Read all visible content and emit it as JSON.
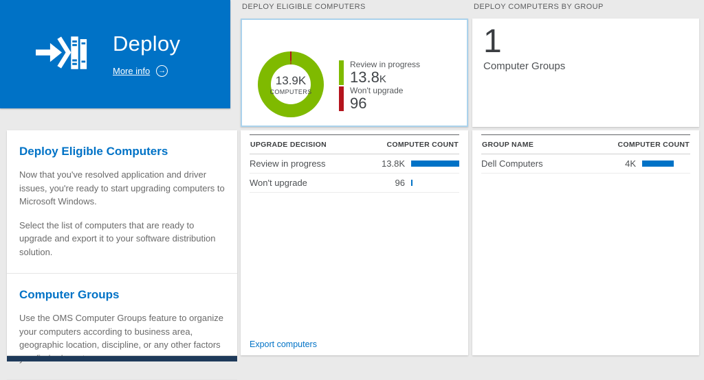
{
  "colors": {
    "accent": "#0072c6",
    "navy": "#1e3a5a",
    "bar": "#0072c6"
  },
  "left_tile": {
    "title": "Deploy",
    "more_info_label": "More info"
  },
  "left_panel": {
    "sections": [
      {
        "heading": "Deploy Eligible Computers",
        "paragraphs": [
          "Now that you've resolved application and driver issues, you're ready to start upgrading computers to Microsoft Windows.",
          "Select the list of computers that are ready to upgrade and export it to your software distribution solution."
        ]
      },
      {
        "heading": "Computer Groups",
        "paragraphs": [
          "Use the OMS Computer Groups feature to organize your computers according to business area, geographic location, discipline, or any other factors you find relevant."
        ]
      }
    ]
  },
  "middle": {
    "section_title": "DEPLOY ELIGIBLE COMPUTERS",
    "donut": {
      "center_value": "13.9K",
      "center_label": "COMPUTERS",
      "legend": [
        {
          "label": "Review in progress",
          "display": "13.8",
          "suffix": "K",
          "value": 13800,
          "color": "#7fba00"
        },
        {
          "label": "Won't upgrade",
          "display": "96",
          "suffix": "",
          "value": 96,
          "color": "#b4141d"
        }
      ]
    },
    "table": {
      "columns": [
        "UPGRADE DECISION",
        "COMPUTER COUNT"
      ],
      "rows": [
        {
          "label": "Review in progress",
          "value": "13.8K",
          "bar_pct": 100
        },
        {
          "label": "Won't upgrade",
          "value": "96",
          "bar_pct": 3
        }
      ]
    },
    "export_link": "Export computers"
  },
  "right": {
    "section_title": "DEPLOY COMPUTERS BY GROUP",
    "summary": {
      "value": "1",
      "label": "Computer Groups"
    },
    "table": {
      "columns": [
        "GROUP NAME",
        "COMPUTER COUNT"
      ],
      "rows": [
        {
          "label": "Dell Computers",
          "value": "4K",
          "bar_pct": 65
        }
      ]
    }
  }
}
